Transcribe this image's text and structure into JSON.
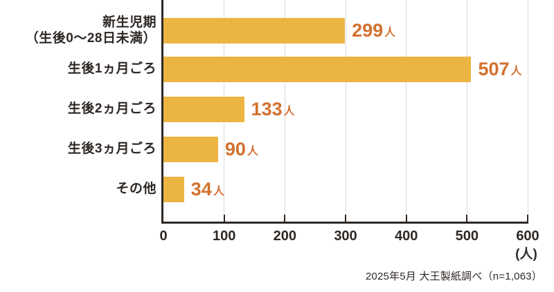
{
  "chart_data": {
    "type": "bar",
    "orientation": "horizontal",
    "title": "",
    "categories": [
      "新生児期\n（生後0〜28日未満）",
      "生後1ヵ月ごろ",
      "生後2ヵ月ごろ",
      "生後3ヵ月ごろ",
      "その他"
    ],
    "values": [
      299,
      507,
      133,
      90,
      34
    ],
    "value_suffix": "人",
    "xlim": [
      0,
      600
    ],
    "x_ticks": [
      0,
      100,
      200,
      300,
      400,
      500,
      600
    ],
    "x_unit": "(人)",
    "grid": true,
    "legend_position": "none",
    "colors": {
      "bar": "#ecb442",
      "value_text": "#d2702e",
      "label_text": "#2e2825",
      "axis": "#2e2825",
      "gridline": "#d8d8d8",
      "background": "#ffffff"
    },
    "source": "2025年5月 大王製紙調べ（n=1,063）"
  }
}
